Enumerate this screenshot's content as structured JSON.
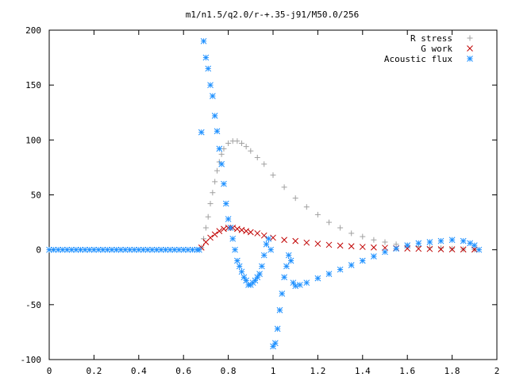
{
  "chart_data": {
    "type": "scatter",
    "title": "m1/n1.5/q2.0/r-+.35-j91/M50.0/256",
    "xlabel": "",
    "ylabel": "",
    "xlim": [
      0,
      2
    ],
    "ylim": [
      -100,
      200
    ],
    "x_ticks": [
      "0",
      "0.2",
      "0.4",
      "0.6",
      "0.8",
      "1",
      "1.2",
      "1.4",
      "1.6",
      "1.8",
      "2"
    ],
    "y_ticks": [
      "-100",
      "-50",
      "0",
      "50",
      "100",
      "150",
      "200"
    ],
    "grid": false,
    "legend_position": "top-right",
    "series": [
      {
        "name": "R stress",
        "marker": "plus",
        "color": "#a0a0a0",
        "x": [
          0.68,
          0.69,
          0.7,
          0.71,
          0.72,
          0.73,
          0.74,
          0.75,
          0.76,
          0.77,
          0.78,
          0.8,
          0.82,
          0.84,
          0.86,
          0.88,
          0.9,
          0.93,
          0.96,
          1.0,
          1.05,
          1.1,
          1.15,
          1.2,
          1.25,
          1.3,
          1.35,
          1.4,
          1.45,
          1.5,
          1.55,
          1.6,
          1.65,
          1.7,
          1.75,
          1.8,
          1.85,
          1.9
        ],
        "y": [
          2,
          10,
          20,
          30,
          42,
          52,
          62,
          72,
          80,
          87,
          92,
          97,
          99,
          99,
          97,
          94,
          90,
          84,
          78,
          68,
          57,
          47,
          39,
          32,
          25,
          20,
          15,
          12,
          9,
          7,
          5,
          4,
          3,
          2,
          1.5,
          1,
          0.5,
          0.2
        ]
      },
      {
        "name": "G work",
        "marker": "cross",
        "color": "#c00000",
        "x": [
          0.68,
          0.7,
          0.72,
          0.74,
          0.76,
          0.78,
          0.8,
          0.82,
          0.84,
          0.86,
          0.88,
          0.9,
          0.93,
          0.96,
          1.0,
          1.05,
          1.1,
          1.15,
          1.2,
          1.25,
          1.3,
          1.35,
          1.4,
          1.45,
          1.5,
          1.55,
          1.6,
          1.65,
          1.7,
          1.75,
          1.8,
          1.85,
          1.9
        ],
        "y": [
          2,
          7,
          11,
          14,
          17,
          19,
          20,
          20,
          19,
          18,
          17,
          16,
          15,
          13,
          11,
          9,
          8,
          6.5,
          5.5,
          4.5,
          3.8,
          3.2,
          2.6,
          2.1,
          1.8,
          1.4,
          1.1,
          0.9,
          0.7,
          0.5,
          0.4,
          0.3,
          0.2
        ]
      },
      {
        "name": "Acoustic flux",
        "marker": "star",
        "color": "#1e90ff",
        "x": [
          0.0,
          0.02,
          0.04,
          0.06,
          0.08,
          0.1,
          0.12,
          0.14,
          0.16,
          0.18,
          0.2,
          0.22,
          0.24,
          0.26,
          0.28,
          0.3,
          0.32,
          0.34,
          0.36,
          0.38,
          0.4,
          0.42,
          0.44,
          0.46,
          0.48,
          0.5,
          0.52,
          0.54,
          0.56,
          0.58,
          0.6,
          0.62,
          0.64,
          0.66,
          0.67,
          0.68,
          0.69,
          0.7,
          0.71,
          0.72,
          0.73,
          0.74,
          0.75,
          0.76,
          0.77,
          0.78,
          0.79,
          0.8,
          0.81,
          0.82,
          0.83,
          0.84,
          0.85,
          0.86,
          0.87,
          0.88,
          0.89,
          0.9,
          0.91,
          0.92,
          0.93,
          0.94,
          0.95,
          0.96,
          0.97,
          0.98,
          0.99,
          1.0,
          1.01,
          1.02,
          1.03,
          1.04,
          1.05,
          1.06,
          1.07,
          1.08,
          1.09,
          1.1,
          1.12,
          1.15,
          1.2,
          1.25,
          1.3,
          1.35,
          1.4,
          1.45,
          1.5,
          1.55,
          1.6,
          1.65,
          1.7,
          1.75,
          1.8,
          1.85,
          1.88,
          1.9,
          1.92
        ],
        "y": [
          0,
          0,
          0,
          0,
          0,
          0,
          0,
          0,
          0,
          0,
          0,
          0,
          0,
          0,
          0,
          0,
          0,
          0,
          0,
          0,
          0,
          0,
          0,
          0,
          0,
          0,
          0,
          0,
          0,
          0,
          0,
          0,
          0,
          0,
          0,
          107,
          190,
          175,
          165,
          150,
          140,
          122,
          108,
          92,
          78,
          60,
          42,
          28,
          20,
          10,
          0,
          -10,
          -15,
          -20,
          -25,
          -28,
          -32,
          -32,
          -30,
          -28,
          -25,
          -22,
          -15,
          -5,
          5,
          10,
          0,
          -88,
          -85,
          -72,
          -55,
          -40,
          -25,
          -15,
          -5,
          -10,
          -30,
          -33,
          -32,
          -30,
          -26,
          -22,
          -18,
          -14,
          -10,
          -6,
          -2,
          1,
          4,
          6,
          7,
          8,
          9,
          8,
          6,
          4,
          0
        ]
      }
    ]
  }
}
